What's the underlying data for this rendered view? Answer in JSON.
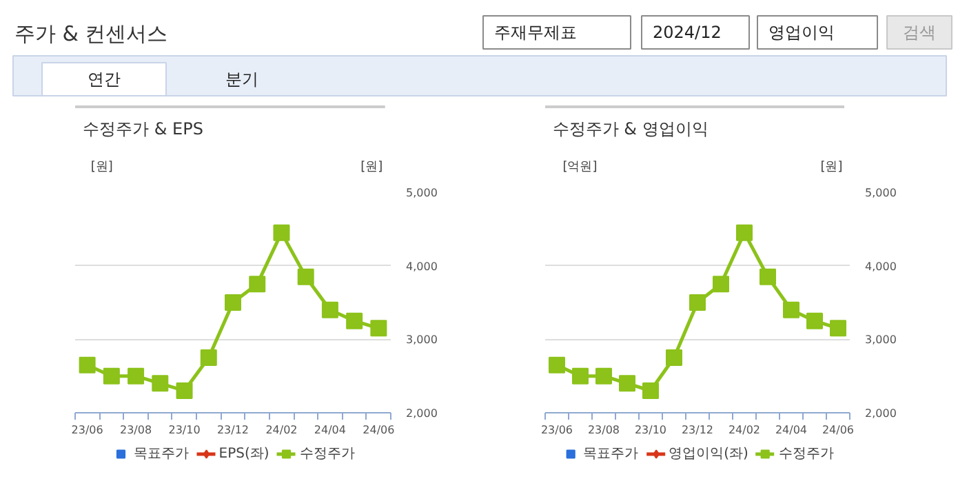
{
  "chart_data": [
    {
      "type": "other",
      "title": "주가 & 컨센서스",
      "annotations": [
        "주재무제표",
        "2024/12",
        "영업이익",
        "검색",
        "연간",
        "분기"
      ]
    },
    {
      "type": "line",
      "title": "수정주가 & EPS",
      "ylabel": "[원]",
      "y2label": "[원]",
      "categories": [
        "23/06",
        null,
        "23/08",
        null,
        "23/10",
        null,
        "23/12",
        null,
        "24/02",
        null,
        "24/04",
        null,
        "24/06"
      ],
      "y2lim": [
        2000,
        5000
      ],
      "y2ticks": [
        {
          "value": 2000,
          "label": "2,000"
        },
        {
          "value": 3000,
          "label": "3,000"
        },
        {
          "value": 4000,
          "label": "4,000"
        },
        {
          "value": 5000,
          "label": "5,000"
        }
      ],
      "grid": "y",
      "legend": "bottom",
      "series": [
        {
          "name": "목표주가",
          "type": "bar",
          "color": "#2a6fdb",
          "values": [
            null,
            null,
            null,
            null,
            null,
            null,
            null,
            null,
            null,
            null,
            null,
            null,
            null
          ]
        },
        {
          "name": "EPS(좌)",
          "type": "line",
          "color": "#d8361a",
          "marker": "diamond",
          "values": [
            null,
            null,
            null,
            null,
            null,
            null,
            null,
            null,
            null,
            null,
            null,
            null,
            null
          ]
        },
        {
          "name": "수정주가",
          "type": "line",
          "color": "#8cc21a",
          "marker": "square",
          "axis": "y2",
          "values": [
            2650,
            2500,
            2500,
            2400,
            2300,
            2750,
            3500,
            3750,
            4450,
            3850,
            3400,
            3250,
            3150
          ]
        }
      ]
    },
    {
      "type": "line",
      "title": "수정주가 & 영업이익",
      "ylabel": "[억원]",
      "y2label": "[원]",
      "categories": [
        "23/06",
        null,
        "23/08",
        null,
        "23/10",
        null,
        "23/12",
        null,
        "24/02",
        null,
        "24/04",
        null,
        "24/06"
      ],
      "y2lim": [
        2000,
        5000
      ],
      "y2ticks": [
        {
          "value": 2000,
          "label": "2,000"
        },
        {
          "value": 3000,
          "label": "3,000"
        },
        {
          "value": 4000,
          "label": "4,000"
        },
        {
          "value": 5000,
          "label": "5,000"
        }
      ],
      "grid": "y",
      "legend": "bottom",
      "series": [
        {
          "name": "목표주가",
          "type": "bar",
          "color": "#2a6fdb",
          "values": [
            null,
            null,
            null,
            null,
            null,
            null,
            null,
            null,
            null,
            null,
            null,
            null,
            null
          ]
        },
        {
          "name": "영업이익(좌)",
          "type": "line",
          "color": "#d8361a",
          "marker": "diamond",
          "values": [
            null,
            null,
            null,
            null,
            null,
            null,
            null,
            null,
            null,
            null,
            null,
            null,
            null
          ]
        },
        {
          "name": "수정주가",
          "type": "line",
          "color": "#8cc21a",
          "marker": "square",
          "axis": "y2",
          "values": [
            2650,
            2500,
            2500,
            2400,
            2300,
            2750,
            3500,
            3750,
            4450,
            3850,
            3400,
            3250,
            3150
          ]
        }
      ]
    }
  ]
}
